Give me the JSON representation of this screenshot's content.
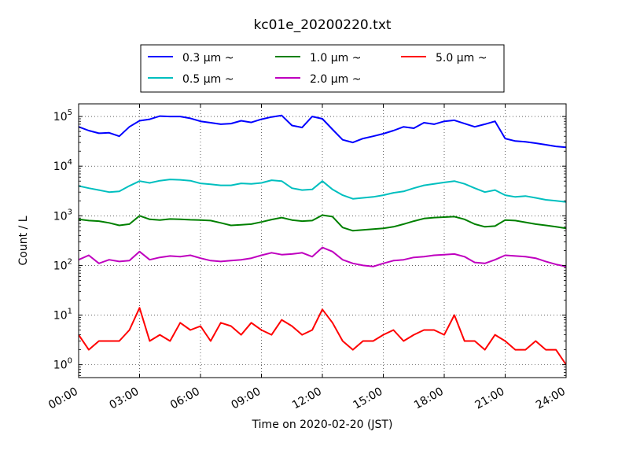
{
  "chart_data": {
    "type": "line",
    "title": "kc01e_20200220.txt",
    "xlabel": "Time on 2020-02-20 (JST)",
    "ylabel": "Count / L",
    "x_tick_labels": [
      "00:00",
      "03:00",
      "06:00",
      "09:00",
      "12:00",
      "15:00",
      "18:00",
      "21:00",
      "24:00"
    ],
    "y_tick_labels": [
      {
        "base": "10",
        "exp": "0"
      },
      {
        "base": "10",
        "exp": "1"
      },
      {
        "base": "10",
        "exp": "2"
      },
      {
        "base": "10",
        "exp": "3"
      },
      {
        "base": "10",
        "exp": "4"
      },
      {
        "base": "10",
        "exp": "5"
      }
    ],
    "xlim_hours": [
      0,
      24
    ],
    "ylim": [
      0.55,
      180000
    ],
    "yscale": "log",
    "grid": true,
    "legend_position": "top-center",
    "series": [
      {
        "name": "0.3 μm ~",
        "color": "#0000ff",
        "x_hours": [
          0.0,
          0.5,
          1.0,
          1.5,
          2.0,
          2.5,
          3.0,
          3.5,
          4.0,
          4.5,
          5.0,
          5.5,
          6.0,
          6.5,
          7.0,
          7.5,
          8.0,
          8.5,
          9.0,
          9.5,
          10.0,
          10.5,
          11.0,
          11.5,
          12.0,
          12.5,
          13.0,
          13.5,
          14.0,
          14.5,
          15.0,
          15.5,
          16.0,
          16.5,
          17.0,
          17.5,
          18.0,
          18.5,
          19.0,
          19.5,
          20.0,
          20.5,
          21.0,
          21.5,
          22.0,
          22.5,
          23.0,
          23.5,
          24.0
        ],
        "values": [
          62000,
          52000,
          46000,
          47000,
          40000,
          62000,
          82000,
          88000,
          102000,
          100000,
          100000,
          92000,
          80000,
          75000,
          70000,
          72000,
          82000,
          76000,
          88000,
          98000,
          105000,
          66000,
          60000,
          100000,
          90000,
          55000,
          34000,
          30000,
          36000,
          40000,
          45000,
          52000,
          62000,
          58000,
          75000,
          70000,
          80000,
          84000,
          72000,
          62000,
          70000,
          80000,
          36000,
          32000,
          31000,
          29000,
          27000,
          25000,
          24000
        ]
      },
      {
        "name": "0.5 μm ~",
        "color": "#00bfbf",
        "x_hours": [
          0.0,
          0.5,
          1.0,
          1.5,
          2.0,
          2.5,
          3.0,
          3.5,
          4.0,
          4.5,
          5.0,
          5.5,
          6.0,
          6.5,
          7.0,
          7.5,
          8.0,
          8.5,
          9.0,
          9.5,
          10.0,
          10.5,
          11.0,
          11.5,
          12.0,
          12.5,
          13.0,
          13.5,
          14.0,
          14.5,
          15.0,
          15.5,
          16.0,
          16.5,
          17.0,
          17.5,
          18.0,
          18.5,
          19.0,
          19.5,
          20.0,
          20.5,
          21.0,
          21.5,
          22.0,
          22.5,
          23.0,
          23.5,
          24.0
        ],
        "values": [
          4000,
          3600,
          3300,
          3000,
          3100,
          4000,
          5000,
          4600,
          5100,
          5400,
          5300,
          5100,
          4500,
          4300,
          4100,
          4100,
          4500,
          4400,
          4600,
          5200,
          5000,
          3600,
          3300,
          3400,
          5000,
          3400,
          2600,
          2200,
          2300,
          2400,
          2600,
          2900,
          3100,
          3600,
          4100,
          4400,
          4700,
          5000,
          4400,
          3600,
          3000,
          3300,
          2600,
          2400,
          2500,
          2300,
          2100,
          2000,
          1900
        ]
      },
      {
        "name": "1.0 μm ~",
        "color": "#008000",
        "x_hours": [
          0.0,
          0.5,
          1.0,
          1.5,
          2.0,
          2.5,
          3.0,
          3.5,
          4.0,
          4.5,
          5.0,
          5.5,
          6.0,
          6.5,
          7.0,
          7.5,
          8.0,
          8.5,
          9.0,
          9.5,
          10.0,
          10.5,
          11.0,
          11.5,
          12.0,
          12.5,
          13.0,
          13.5,
          14.0,
          14.5,
          15.0,
          15.5,
          16.0,
          16.5,
          17.0,
          17.5,
          18.0,
          18.5,
          19.0,
          19.5,
          20.0,
          20.5,
          21.0,
          21.5,
          22.0,
          22.5,
          23.0,
          23.5,
          24.0
        ],
        "values": [
          850,
          800,
          780,
          720,
          640,
          680,
          1000,
          850,
          820,
          860,
          850,
          830,
          820,
          800,
          720,
          640,
          660,
          680,
          750,
          840,
          920,
          820,
          780,
          800,
          1030,
          960,
          580,
          500,
          520,
          540,
          560,
          600,
          680,
          780,
          880,
          920,
          940,
          960,
          850,
          680,
          600,
          620,
          820,
          800,
          740,
          680,
          640,
          600,
          560
        ]
      },
      {
        "name": "2.0 μm ~",
        "color": "#bf00bf",
        "x_hours": [
          0.0,
          0.5,
          1.0,
          1.5,
          2.0,
          2.5,
          3.0,
          3.5,
          4.0,
          4.5,
          5.0,
          5.5,
          6.0,
          6.5,
          7.0,
          7.5,
          8.0,
          8.5,
          9.0,
          9.5,
          10.0,
          10.5,
          11.0,
          11.5,
          12.0,
          12.5,
          13.0,
          13.5,
          14.0,
          14.5,
          15.0,
          15.5,
          16.0,
          16.5,
          17.0,
          17.5,
          18.0,
          18.5,
          19.0,
          19.5,
          20.0,
          20.5,
          21.0,
          21.5,
          22.0,
          22.5,
          23.0,
          23.5,
          24.0
        ],
        "values": [
          130,
          160,
          110,
          130,
          120,
          125,
          190,
          130,
          145,
          155,
          150,
          160,
          140,
          125,
          120,
          125,
          130,
          140,
          160,
          180,
          165,
          170,
          180,
          150,
          230,
          190,
          130,
          110,
          100,
          95,
          110,
          125,
          130,
          145,
          150,
          160,
          165,
          170,
          150,
          115,
          110,
          130,
          160,
          155,
          150,
          140,
          120,
          105,
          95
        ]
      },
      {
        "name": "5.0 μm ~",
        "color": "#ff0000",
        "x_hours": [
          0.0,
          0.5,
          1.0,
          1.5,
          2.0,
          2.5,
          3.0,
          3.5,
          4.0,
          4.5,
          5.0,
          5.5,
          6.0,
          6.5,
          7.0,
          7.5,
          8.0,
          8.5,
          9.0,
          9.5,
          10.0,
          10.5,
          11.0,
          11.5,
          12.0,
          12.5,
          13.0,
          13.5,
          14.0,
          14.5,
          15.0,
          15.5,
          16.0,
          16.5,
          17.0,
          17.5,
          18.0,
          18.5,
          19.0,
          19.5,
          20.0,
          20.5,
          21.0,
          21.5,
          22.0,
          22.5,
          23.0,
          23.5,
          24.0
        ],
        "values": [
          4,
          2,
          3,
          3,
          3,
          5,
          14,
          3,
          4,
          3,
          7,
          5,
          6,
          3,
          7,
          6,
          4,
          7,
          5,
          4,
          8,
          6,
          4,
          5,
          13,
          7,
          3,
          2,
          3,
          3,
          4,
          5,
          3,
          4,
          5,
          5,
          4,
          10,
          3,
          3,
          2,
          4,
          3,
          2,
          2,
          3,
          2,
          2,
          1
        ]
      }
    ]
  }
}
